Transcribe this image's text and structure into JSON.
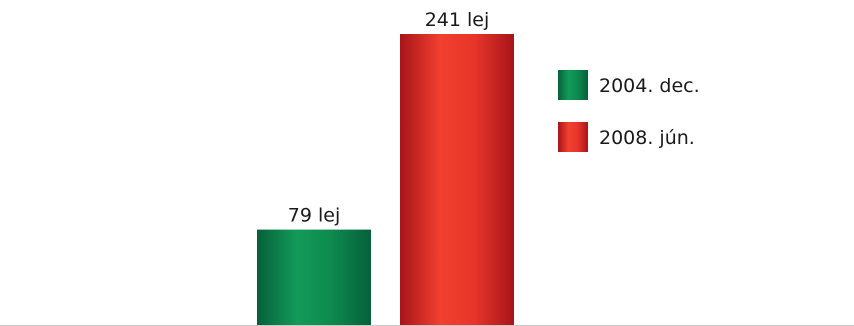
{
  "chart_data": {
    "type": "bar",
    "categories": [
      "2004. dec.",
      "2008. jún."
    ],
    "values": [
      79,
      241
    ],
    "data_labels": [
      "79 lej",
      "241 lej"
    ],
    "colors": [
      "#0e8a4f",
      "#e8352a"
    ],
    "legend": {
      "position": "right",
      "entries": [
        {
          "label": "2004. dec.",
          "color": "#0e8a4f"
        },
        {
          "label": "2008. jún.",
          "color": "#e8352a"
        }
      ]
    },
    "ylim": [
      0,
      241
    ],
    "grid": false
  }
}
